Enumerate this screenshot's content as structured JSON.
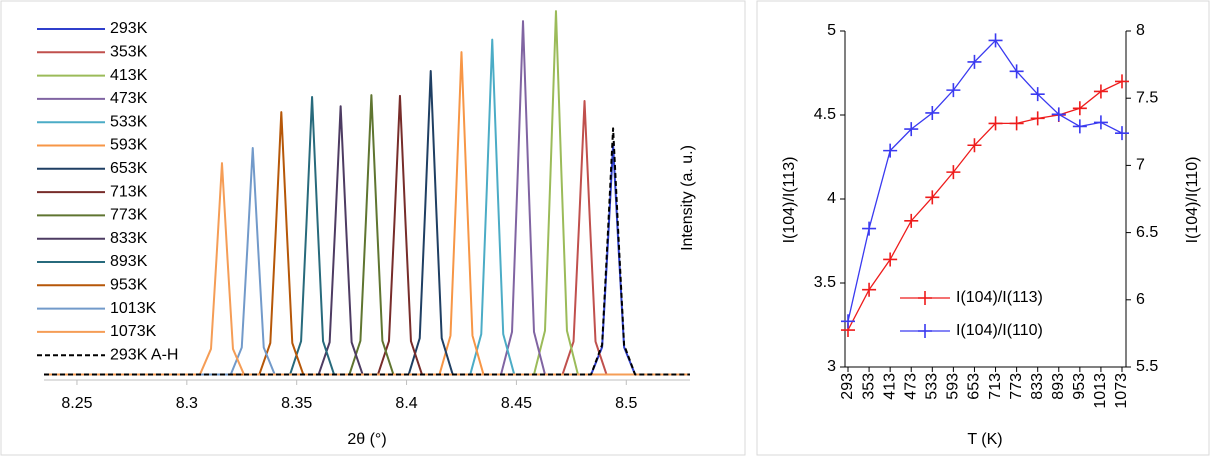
{
  "chart_data": [
    {
      "type": "line",
      "x_label": "2θ (°)",
      "y_label": "Intensity (a. u.)",
      "xlim": [
        8.235,
        8.529
      ],
      "ylim": [
        0,
        100
      ],
      "xticks": [
        8.25,
        8.3,
        8.35,
        8.4,
        8.45,
        8.5
      ],
      "series": [
        {
          "name": "293K",
          "color": "#2f3fcc",
          "x": [
            8.235,
            8.484,
            8.489,
            8.4915,
            8.494,
            8.4965,
            8.499,
            8.504,
            8.529
          ],
          "values": [
            1.5,
            1.5,
            8.9,
            35.6,
            63.5,
            35.6,
            8.9,
            1.5,
            1.5
          ]
        },
        {
          "name": "353K",
          "color": "#c0504d",
          "x": [
            8.235,
            8.471,
            8.476,
            8.4785,
            8.481,
            8.4835,
            8.486,
            8.491,
            8.529
          ],
          "values": [
            1.5,
            1.5,
            10.4,
            42.1,
            75.4,
            42.1,
            10.4,
            1.5,
            1.5
          ]
        },
        {
          "name": "413K",
          "color": "#9bbb59",
          "x": [
            8.235,
            8.458,
            8.463,
            8.4655,
            8.468,
            8.4705,
            8.473,
            8.478,
            8.529
          ],
          "values": [
            1.5,
            1.5,
            13.3,
            55.5,
            99.7,
            55.5,
            13.3,
            1.5,
            1.5
          ]
        },
        {
          "name": "473K",
          "color": "#8064a2",
          "x": [
            8.235,
            8.443,
            8.448,
            8.4505,
            8.453,
            8.4555,
            8.458,
            8.463,
            8.529
          ],
          "values": [
            1.5,
            1.5,
            13.0,
            54.0,
            97,
            54.0,
            13.0,
            1.5,
            1.5
          ]
        },
        {
          "name": "533K",
          "color": "#4bacc6",
          "x": [
            8.235,
            8.429,
            8.434,
            8.4365,
            8.439,
            8.4415,
            8.444,
            8.449,
            8.529
          ],
          "values": [
            1.5,
            1.5,
            12.4,
            51.3,
            92,
            51.3,
            12.4,
            1.5,
            1.5
          ]
        },
        {
          "name": "593K",
          "color": "#f79646",
          "x": [
            8.235,
            8.415,
            8.42,
            8.4225,
            8.425,
            8.4275,
            8.43,
            8.435,
            8.529
          ],
          "values": [
            1.5,
            1.5,
            12.0,
            49.4,
            88.6,
            49.4,
            12.0,
            1.5,
            1.5
          ]
        },
        {
          "name": "653K",
          "color": "#1f3f63",
          "x": [
            8.235,
            8.401,
            8.406,
            8.4085,
            8.411,
            8.4135,
            8.416,
            8.421,
            8.529
          ],
          "values": [
            1.5,
            1.5,
            11.3,
            46.6,
            83.5,
            46.6,
            11.3,
            1.5,
            1.5
          ]
        },
        {
          "name": "713K",
          "color": "#772c2a",
          "x": [
            8.235,
            8.387,
            8.392,
            8.3945,
            8.397,
            8.3995,
            8.402,
            8.407,
            8.529
          ],
          "values": [
            1.5,
            1.5,
            10.5,
            42.9,
            76.8,
            42.9,
            10.5,
            1.5,
            1.5
          ]
        },
        {
          "name": "773K",
          "color": "#5f7530",
          "x": [
            8.235,
            8.374,
            8.379,
            8.3815,
            8.384,
            8.3865,
            8.389,
            8.394,
            8.529
          ],
          "values": [
            1.5,
            1.5,
            10.6,
            43.0,
            77,
            43.0,
            10.6,
            1.5,
            1.5
          ]
        },
        {
          "name": "833K",
          "color": "#4d3b62",
          "x": [
            8.235,
            8.36,
            8.365,
            8.3675,
            8.37,
            8.3725,
            8.375,
            8.38,
            8.529
          ],
          "values": [
            1.5,
            1.5,
            10.2,
            41.4,
            74,
            41.4,
            10.2,
            1.5,
            1.5
          ]
        },
        {
          "name": "893K",
          "color": "#276a7c",
          "x": [
            8.235,
            8.347,
            8.352,
            8.3545,
            8.357,
            8.3595,
            8.362,
            8.367,
            8.529
          ],
          "values": [
            1.5,
            1.5,
            10.5,
            42.8,
            76.5,
            42.8,
            10.5,
            1.5,
            1.5
          ]
        },
        {
          "name": "953K",
          "color": "#b65708",
          "x": [
            8.235,
            8.333,
            8.338,
            8.3405,
            8.343,
            8.3455,
            8.348,
            8.353,
            8.529
          ],
          "values": [
            1.5,
            1.5,
            10.0,
            40.5,
            72.4,
            40.5,
            10.0,
            1.5,
            1.5
          ]
        },
        {
          "name": "1013K",
          "color": "#729aca",
          "x": [
            8.235,
            8.32,
            8.325,
            8.3275,
            8.33,
            8.3325,
            8.335,
            8.34,
            8.529
          ],
          "values": [
            1.5,
            1.5,
            8.8,
            35.2,
            62.7,
            35.2,
            8.8,
            1.5,
            1.5
          ]
        },
        {
          "name": "1073K",
          "color": "#f59d56",
          "x": [
            8.235,
            8.306,
            8.311,
            8.3135,
            8.316,
            8.3185,
            8.321,
            8.326,
            8.529
          ],
          "values": [
            1.5,
            1.5,
            8.4,
            32.9,
            58.6,
            32.9,
            8.4,
            1.5,
            1.5
          ]
        },
        {
          "name": "293K A-H",
          "color": "#000000",
          "dash": true,
          "x": [
            8.235,
            8.484,
            8.489,
            8.4915,
            8.494,
            8.4965,
            8.499,
            8.504,
            8.529
          ],
          "values": [
            1.5,
            1.5,
            9.5,
            38.1,
            68,
            38.1,
            9.5,
            1.5,
            1.5
          ]
        }
      ]
    },
    {
      "type": "line",
      "x_label": "T (K)",
      "y_label": "I(104)/I(113)",
      "y2_label": "I(104)/I(110)",
      "categories": [
        "293",
        "353",
        "413",
        "473",
        "533",
        "593",
        "653",
        "713",
        "773",
        "833",
        "893",
        "953",
        "1013",
        "1073"
      ],
      "ylim": [
        3,
        5
      ],
      "yticks": [
        3,
        3.5,
        4,
        4.5,
        5
      ],
      "y2lim": [
        5.5,
        8
      ],
      "y2ticks": [
        5.5,
        6,
        6.5,
        7,
        7.5,
        8
      ],
      "series": [
        {
          "name": "I(104)/I(113)",
          "color": "#ee1c1c",
          "marker": "+",
          "values": [
            3.22,
            3.46,
            3.64,
            3.87,
            4.01,
            4.16,
            4.32,
            4.45,
            4.45,
            4.48,
            4.5,
            4.54,
            4.64,
            4.7
          ]
        },
        {
          "name": "I(104)/I(110)",
          "color": "#3a3af0",
          "marker": "+",
          "axis": "y2",
          "values": [
            5.84,
            6.53,
            7.11,
            7.27,
            7.39,
            7.56,
            7.77,
            7.93,
            7.7,
            7.53,
            7.38,
            7.29,
            7.32,
            7.24
          ]
        }
      ]
    }
  ]
}
